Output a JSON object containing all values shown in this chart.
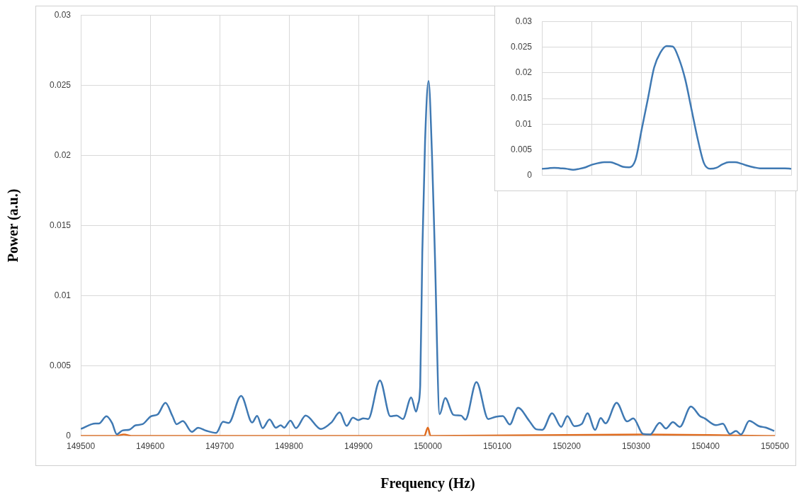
{
  "chart_data": [
    {
      "type": "line",
      "xlabel": "Frequency (Hz)",
      "ylabel": "Power (a.u.)",
      "xlim": [
        149500,
        150500
      ],
      "xticks": [
        149500,
        149600,
        149700,
        149800,
        149900,
        150000,
        150100,
        150200,
        150300,
        150400,
        150500
      ],
      "ylim": [
        0,
        0.03
      ],
      "yticks": [
        0,
        0.005,
        0.01,
        0.015,
        0.02,
        0.025,
        0.03
      ],
      "grid": true,
      "legend": false,
      "marker": "none",
      "line_style": "solid",
      "series": [
        {
          "color": "#3f79b3",
          "x": [
            149500,
            149521,
            149526,
            149537,
            149545,
            149552,
            149560,
            149570,
            149579,
            149589,
            149601,
            149611,
            149622,
            149632,
            149638,
            149647,
            149660,
            149669,
            149681,
            149695,
            149705,
            149713,
            149731,
            149747,
            149754,
            149762,
            149772,
            149781,
            149788,
            149793,
            149802,
            149810,
            149824,
            149846,
            149861,
            149873,
            149883,
            149892,
            149900,
            149907,
            149914,
            149931,
            149946,
            149955,
            149964,
            149976,
            149983,
            149986,
            149989,
            149992,
            149996,
            150001,
            150006,
            150010,
            150017,
            150025,
            150037,
            150048,
            150054,
            150070,
            150087,
            150098,
            150108,
            150118,
            150130,
            150146,
            150156,
            150165,
            150179,
            150192,
            150201,
            150211,
            150222,
            150230,
            150241,
            150249,
            150256,
            150272,
            150287,
            150296,
            150310,
            150320,
            150334,
            150343,
            150353,
            150363,
            150379,
            150392,
            150399,
            150415,
            150425,
            150435,
            150444,
            150451,
            150463,
            150477,
            150487,
            150499
          ],
          "values": [
            0.0005,
            0.00089,
            0.00089,
            0.0014,
            0.00093,
            0.00012,
            0.00039,
            0.00045,
            0.00076,
            0.00084,
            0.0014,
            0.00155,
            0.00236,
            0.00143,
            0.00084,
            0.00106,
            0.00029,
            0.00059,
            0.00037,
            0.00022,
            0.00101,
            0.00093,
            0.00286,
            0.00096,
            0.00143,
            0.00056,
            0.00118,
            0.00059,
            0.00076,
            0.00059,
            0.00109,
            0.00056,
            0.00146,
            0.0005,
            0.00096,
            0.00168,
            0.00072,
            0.0013,
            0.00113,
            0.00126,
            0.00121,
            0.00396,
            0.0014,
            0.00146,
            0.00121,
            0.00274,
            0.00173,
            0.00227,
            0.0036,
            0.01305,
            0.021,
            0.0253,
            0.02,
            0.0132,
            0.00155,
            0.0027,
            0.0015,
            0.00145,
            0.00116,
            0.00384,
            0.00121,
            0.00137,
            0.00142,
            0.00082,
            0.00201,
            0.00108,
            0.00048,
            0.00044,
            0.00162,
            0.00065,
            0.00142,
            0.0007,
            0.00087,
            0.00162,
            0.00043,
            0.00128,
            0.0009,
            0.00236,
            0.00104,
            0.00125,
            0.00014,
            0.0001,
            0.00094,
            0.00053,
            0.00099,
            0.00065,
            0.0021,
            0.00142,
            0.00125,
            0.00077,
            0.00087,
            0.00014,
            0.00036,
            0.0001,
            0.00108,
            0.0007,
            0.0006,
            0.00036
          ]
        },
        {
          "color": "#e06c1f",
          "x": [
            149500,
            149550,
            149562,
            149575,
            149730,
            149890,
            149995,
            150000,
            150004,
            150310,
            150500
          ],
          "values": [
            0,
            0,
            0.0001,
            0,
            0,
            0,
            0,
            0.0006,
            0,
            0.0001,
            0
          ]
        }
      ]
    },
    {
      "type": "line",
      "categories": [
        null,
        null,
        null,
        null,
        null,
        null,
        null,
        null,
        null,
        null,
        null,
        null,
        null,
        null,
        null,
        null,
        null,
        null,
        null,
        null,
        null,
        null,
        null,
        null,
        null,
        null,
        null,
        null,
        null,
        null,
        null,
        null,
        null,
        null,
        null,
        null,
        null,
        null,
        null,
        null,
        null
      ],
      "ylim": [
        0,
        0.03
      ],
      "yticks": [
        0,
        0.005,
        0.01,
        0.015,
        0.02,
        0.025,
        0.03
      ],
      "grid": true,
      "legend": false,
      "marker": "none",
      "line_style": "solid",
      "tick_labels": "y",
      "series": [
        {
          "color": "#3f79b3",
          "values": [
            0.0013,
            0.0014,
            0.0015,
            0.0014,
            0.0013,
            0.0011,
            0.0013,
            0.0016,
            0.0021,
            0.0024,
            0.0026,
            0.0026,
            0.0022,
            0.0017,
            0.0016,
            0.003,
            0.0089,
            0.0149,
            0.021,
            0.0239,
            0.0252,
            0.0251,
            0.0227,
            0.0187,
            0.0129,
            0.0071,
            0.0024,
            0.0013,
            0.0015,
            0.0022,
            0.0026,
            0.0026,
            0.0023,
            0.0019,
            0.0016,
            0.0014,
            0.0014,
            0.0014,
            0.0014,
            0.0014,
            0.0013
          ]
        }
      ]
    }
  ]
}
